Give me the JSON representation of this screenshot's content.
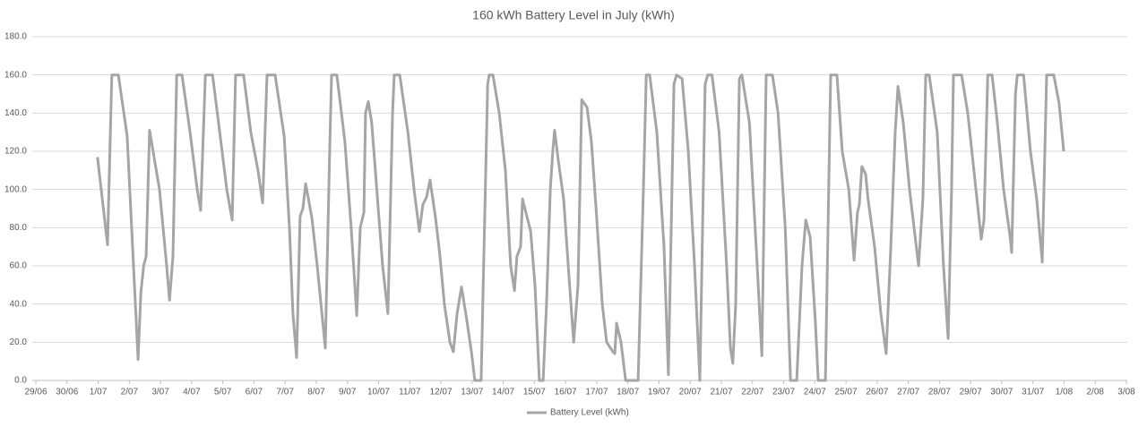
{
  "chart_data": {
    "type": "line",
    "title": "160 kWh Battery Level in July (kWh)",
    "x": [
      1.98,
      2.3,
      2.44,
      2.65,
      2.93,
      3.28,
      3.37,
      3.46,
      3.54,
      3.65,
      3.97,
      4.2,
      4.29,
      4.4,
      4.52,
      4.69,
      4.95,
      5.18,
      5.29,
      5.44,
      5.67,
      5.9,
      6.13,
      6.3,
      6.41,
      6.67,
      6.9,
      7.13,
      7.28,
      7.42,
      7.68,
      7.97,
      8.14,
      8.25,
      8.37,
      8.48,
      8.57,
      8.66,
      8.86,
      9.03,
      9.15,
      9.29,
      9.43,
      9.49,
      9.66,
      9.92,
      10.12,
      10.3,
      10.41,
      10.53,
      10.58,
      10.67,
      10.78,
      10.99,
      11.13,
      11.3,
      11.45,
      11.5,
      11.68,
      11.94,
      12.14,
      12.31,
      12.42,
      12.54,
      12.65,
      12.83,
      12.97,
      13.11,
      13.29,
      13.4,
      13.52,
      13.66,
      13.8,
      13.98,
      14.09,
      14.29,
      14.5,
      14.55,
      14.67,
      14.87,
      15.07,
      15.24,
      15.36,
      15.44,
      15.56,
      15.62,
      15.88,
      16.02,
      16.16,
      16.28,
      16.39,
      16.51,
      16.59,
      16.65,
      16.77,
      16.94,
      17.11,
      17.26,
      17.4,
      17.52,
      17.69,
      17.83,
      17.98,
      18.18,
      18.32,
      18.52,
      18.58,
      18.64,
      18.78,
      18.93,
      19.33,
      19.5,
      19.59,
      19.7,
      19.93,
      20.16,
      20.3,
      20.48,
      20.56,
      20.74,
      20.94,
      21.14,
      21.31,
      21.48,
      21.56,
      21.7,
      21.93,
      22.17,
      22.29,
      22.37,
      22.46,
      22.58,
      22.66,
      22.9,
      23.15,
      23.3,
      23.44,
      23.64,
      23.82,
      24.05,
      24.22,
      24.42,
      24.59,
      24.71,
      24.85,
      25.02,
      25.11,
      25.34,
      25.51,
      25.71,
      25.88,
      26.09,
      26.26,
      26.37,
      26.43,
      26.51,
      26.63,
      26.71,
      26.92,
      27.12,
      27.29,
      27.44,
      27.58,
      27.67,
      27.84,
      28.04,
      28.33,
      28.47,
      28.56,
      28.67,
      28.93,
      29.13,
      29.28,
      29.39,
      29.45,
      29.71,
      29.91,
      30.17,
      30.34,
      30.43,
      30.55,
      30.69,
      30.86,
      31.06,
      31.27,
      31.32,
      31.44,
      31.5,
      31.7,
      31.92,
      32.12,
      32.3,
      32.44,
      32.67,
      32.84,
      32.99
    ],
    "series": [
      {
        "name": "Battery Level (kWh)",
        "color": "#a5a5a5",
        "values": [
          117,
          71,
          160,
          160,
          128,
          11,
          46,
          60,
          65,
          131,
          100,
          60,
          42,
          65,
          160,
          160,
          130,
          100,
          89,
          160,
          160,
          130,
          100,
          84,
          160,
          160,
          130,
          110,
          93,
          160,
          160,
          128,
          80,
          35,
          12,
          86,
          90,
          103,
          85,
          60,
          40,
          17,
          120,
          160,
          160,
          125,
          80,
          34,
          80,
          88,
          140,
          146,
          135,
          90,
          60,
          35,
          140,
          160,
          160,
          130,
          100,
          78,
          92,
          96,
          105,
          85,
          65,
          40,
          20,
          15,
          35,
          49,
          35,
          15,
          0,
          0,
          155,
          160,
          160,
          140,
          110,
          60,
          47,
          65,
          70,
          95,
          78,
          50,
          0,
          0,
          40,
          100,
          120,
          131,
          115,
          95,
          55,
          20,
          50,
          147,
          143,
          125,
          90,
          40,
          20,
          15,
          14,
          30,
          20,
          0,
          0,
          100,
          160,
          160,
          130,
          70,
          3,
          155,
          160,
          158,
          120,
          60,
          0,
          155,
          160,
          160,
          130,
          60,
          17,
          9,
          40,
          158,
          160,
          135,
          60,
          13,
          160,
          160,
          140,
          80,
          0,
          0,
          60,
          84,
          75,
          30,
          0,
          0,
          160,
          160,
          120,
          100,
          63,
          88,
          92,
          112,
          108,
          95,
          70,
          35,
          14,
          70,
          130,
          154,
          135,
          100,
          60,
          95,
          160,
          160,
          130,
          60,
          22,
          100,
          160,
          160,
          140,
          100,
          74,
          84,
          160,
          160,
          135,
          100,
          75,
          67,
          150,
          160,
          160,
          120,
          95,
          62,
          160,
          160,
          145,
          120
        ]
      }
    ],
    "xlim": [
      0,
      35
    ],
    "xticks": [
      {
        "value": 0,
        "label": "29/06"
      },
      {
        "value": 1,
        "label": "30/06"
      },
      {
        "value": 2,
        "label": "1/07"
      },
      {
        "value": 3,
        "label": "2/07"
      },
      {
        "value": 4,
        "label": "3/07"
      },
      {
        "value": 5,
        "label": "4/07"
      },
      {
        "value": 6,
        "label": "5/07"
      },
      {
        "value": 7,
        "label": "6/07"
      },
      {
        "value": 8,
        "label": "7/07"
      },
      {
        "value": 9,
        "label": "8/07"
      },
      {
        "value": 10,
        "label": "9/07"
      },
      {
        "value": 11,
        "label": "10/07"
      },
      {
        "value": 12,
        "label": "11/07"
      },
      {
        "value": 13,
        "label": "12/07"
      },
      {
        "value": 14,
        "label": "13/07"
      },
      {
        "value": 15,
        "label": "14/07"
      },
      {
        "value": 16,
        "label": "15/07"
      },
      {
        "value": 17,
        "label": "16/07"
      },
      {
        "value": 18,
        "label": "17/07"
      },
      {
        "value": 19,
        "label": "18/07"
      },
      {
        "value": 20,
        "label": "19/07"
      },
      {
        "value": 21,
        "label": "20/07"
      },
      {
        "value": 22,
        "label": "21/07"
      },
      {
        "value": 23,
        "label": "22/07"
      },
      {
        "value": 24,
        "label": "23/07"
      },
      {
        "value": 25,
        "label": "24/07"
      },
      {
        "value": 26,
        "label": "25/07"
      },
      {
        "value": 27,
        "label": "26/07"
      },
      {
        "value": 28,
        "label": "27/07"
      },
      {
        "value": 29,
        "label": "28/07"
      },
      {
        "value": 30,
        "label": "29/07"
      },
      {
        "value": 31,
        "label": "30/07"
      },
      {
        "value": 32,
        "label": "31/07"
      },
      {
        "value": 33,
        "label": "1/08"
      },
      {
        "value": 34,
        "label": "2/08"
      },
      {
        "value": 35,
        "label": "3/08"
      }
    ],
    "ylim": [
      0,
      180
    ],
    "yticks": [
      {
        "value": 0,
        "label": "0.0"
      },
      {
        "value": 20,
        "label": "20.0"
      },
      {
        "value": 40,
        "label": "40.0"
      },
      {
        "value": 60,
        "label": "60.0"
      },
      {
        "value": 80,
        "label": "80.0"
      },
      {
        "value": 100,
        "label": "100.0"
      },
      {
        "value": 120,
        "label": "120.0"
      },
      {
        "value": 140,
        "label": "140.0"
      },
      {
        "value": 160,
        "label": "160.0"
      },
      {
        "value": 180,
        "label": "180.0"
      }
    ],
    "grid": true,
    "legend": "bottom"
  }
}
